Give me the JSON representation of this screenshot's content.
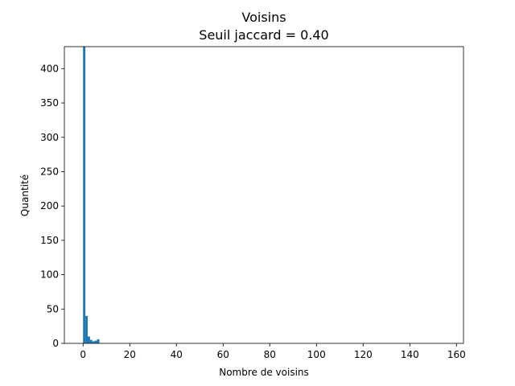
{
  "chart_data": {
    "type": "bar",
    "title": "Voisins",
    "subtitle": "Seuil jaccard = 0.40",
    "xlabel": "Nombre de voisins",
    "ylabel": "Quantité",
    "xlim": [
      -8,
      163
    ],
    "ylim": [
      0,
      432
    ],
    "xticks": [
      0,
      20,
      40,
      60,
      80,
      100,
      120,
      140,
      160
    ],
    "yticks": [
      0,
      50,
      100,
      150,
      200,
      250,
      300,
      350,
      400
    ],
    "bin_width": 1,
    "bins": [
      {
        "x": 0,
        "value": 432
      },
      {
        "x": 1,
        "value": 40
      },
      {
        "x": 2,
        "value": 10
      },
      {
        "x": 3,
        "value": 5
      },
      {
        "x": 4,
        "value": 3
      },
      {
        "x": 5,
        "value": 4
      },
      {
        "x": 6,
        "value": 6
      }
    ],
    "bar_color": "#1f77b4",
    "grid": false,
    "legend": "none"
  }
}
